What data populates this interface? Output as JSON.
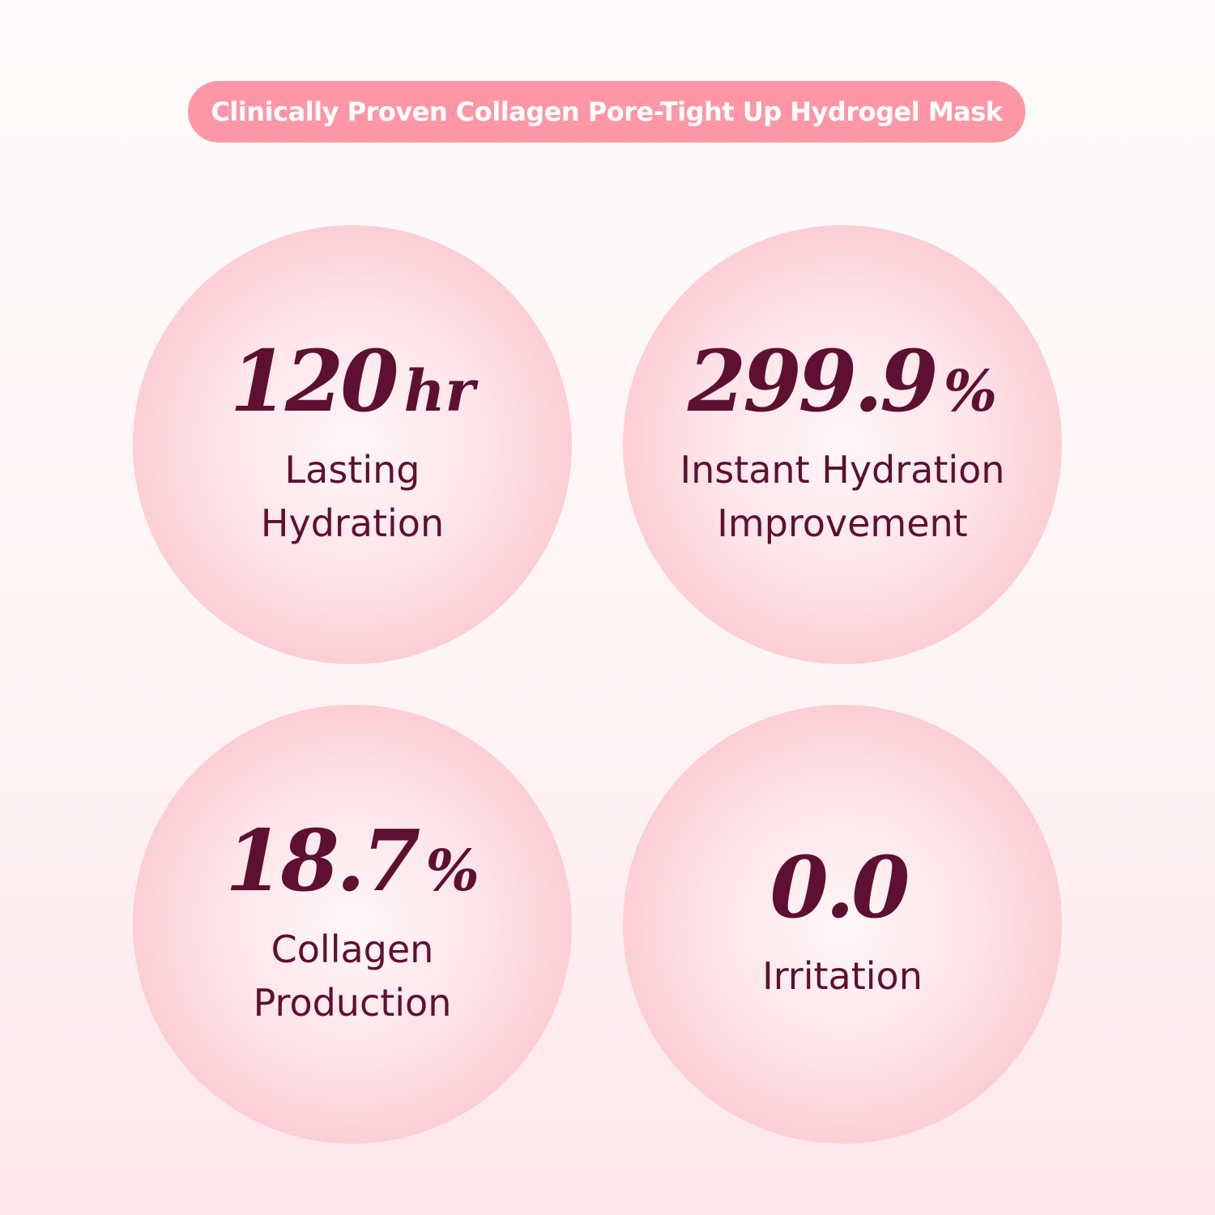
{
  "banner": {
    "title": "Clinically Proven Collagen Pore-Tight Up Hydrogel Mask"
  },
  "stats": [
    {
      "value": "120",
      "unit": "hr",
      "label_lines": [
        "Lasting",
        "Hydration"
      ]
    },
    {
      "value": "299.9",
      "unit": "%",
      "label_lines": [
        "Instant Hydration",
        "Improvement"
      ]
    },
    {
      "value": "18.7",
      "unit": "%",
      "label_lines": [
        "Collagen",
        "Production"
      ]
    },
    {
      "value": "0.0",
      "unit": "",
      "label_lines": [
        "Irritation"
      ]
    }
  ],
  "colors": {
    "banner": "#fd97a5",
    "text": "#5e1030",
    "circle": "#fbb7c2"
  }
}
